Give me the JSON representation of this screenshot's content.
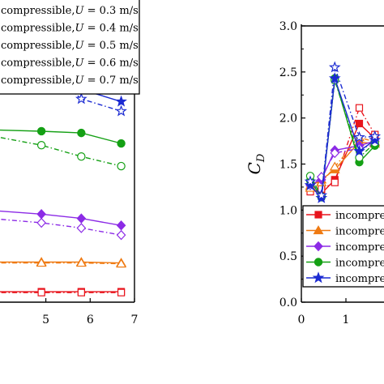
{
  "legend_entries": [
    {
      "prefix": "compressible,",
      "var": "U",
      "suffix": " = 0.3 m/s"
    },
    {
      "prefix": "compressible,",
      "var": "U",
      "suffix": " = 0.4 m/s"
    },
    {
      "prefix": "compressible,",
      "var": "U",
      "suffix": " = 0.5 m/s"
    },
    {
      "prefix": "compressible,",
      "var": "U",
      "suffix": " = 0.6 m/s"
    },
    {
      "prefix": "compressible,",
      "var": "U",
      "suffix": " = 0.7 m/s"
    }
  ],
  "chart_data": [
    {
      "type": "line",
      "title": "",
      "xlabel": "",
      "ylabel": "",
      "xlim": [
        3.6,
        7
      ],
      "x_ticks": [
        5,
        6,
        7
      ],
      "grid": false,
      "legend_position": "top-left",
      "series": [
        {
          "color": "#e8141c",
          "marker": "square",
          "x": [
            4.9,
            5.8,
            6.7
          ],
          "y": [
            0.12,
            0.12,
            0.12
          ]
        },
        {
          "color": "#e8141c",
          "marker": "square-open",
          "dashed": true,
          "x": [
            4.9,
            5.8,
            6.7
          ],
          "y": [
            0.11,
            0.11,
            0.11
          ]
        },
        {
          "color": "#ef7a12",
          "marker": "triangle",
          "x": [
            4.9,
            5.8,
            6.7
          ],
          "y": [
            0.46,
            0.46,
            0.45
          ]
        },
        {
          "color": "#ef7a12",
          "marker": "triangle-open",
          "dashed": true,
          "x": [
            4.9,
            5.8,
            6.7
          ],
          "y": [
            0.45,
            0.45,
            0.44
          ]
        },
        {
          "color": "#8c2be6",
          "marker": "diamond",
          "x": [
            4.9,
            5.8,
            6.7
          ],
          "y": [
            1.01,
            0.96,
            0.88
          ]
        },
        {
          "color": "#8c2be6",
          "marker": "diamond-open",
          "dashed": true,
          "x": [
            4.9,
            5.8,
            6.7
          ],
          "y": [
            0.91,
            0.85,
            0.77
          ]
        },
        {
          "color": "#14a014",
          "marker": "circle",
          "x": [
            4.9,
            5.8,
            6.7
          ],
          "y": [
            1.96,
            1.94,
            1.82
          ]
        },
        {
          "color": "#14a014",
          "marker": "circle-open",
          "dashed": true,
          "x": [
            4.9,
            5.8,
            6.7
          ],
          "y": [
            1.8,
            1.67,
            1.56
          ]
        },
        {
          "color": "#1c2bd2",
          "marker": "star",
          "x": [
            4.9,
            5.8,
            6.7
          ],
          "y": [
            2.5,
            2.44,
            2.3
          ]
        },
        {
          "color": "#1c2bd2",
          "marker": "star-open",
          "dashed": true,
          "x": [
            4.9,
            5.8,
            6.7
          ],
          "y": [
            2.72,
            2.33,
            2.19
          ]
        }
      ]
    },
    {
      "type": "line",
      "title": "",
      "xlabel": "",
      "ylabel": "C",
      "ylabel_sub": "D",
      "ylim": [
        0,
        3
      ],
      "y_ticks": [
        "0.0",
        "0.5",
        "1.0",
        "1.5",
        "2.0",
        "2.5",
        "3.0"
      ],
      "xlim": [
        0,
        1.75
      ],
      "x_ticks": [
        0,
        1
      ],
      "grid": false,
      "legend_position": "bottom-right",
      "legend": [
        "incompressible",
        "incompressible",
        "incompressible",
        "incompressible",
        "incompressible"
      ],
      "series": [
        {
          "color": "#e8141c",
          "marker": "square",
          "x": [
            0.2,
            0.45,
            0.75,
            1.3,
            1.65
          ],
          "y": [
            1.24,
            1.18,
            1.33,
            1.94,
            1.78
          ]
        },
        {
          "color": "#e8141c",
          "marker": "square-open",
          "dashed": true,
          "x": [
            0.2,
            0.45,
            0.75,
            1.3,
            1.65
          ],
          "y": [
            1.2,
            1.23,
            1.3,
            2.11,
            1.82
          ]
        },
        {
          "color": "#ef7a12",
          "marker": "triangle",
          "x": [
            0.2,
            0.45,
            0.75,
            1.3,
            1.65
          ],
          "y": [
            1.26,
            1.33,
            1.44,
            1.74,
            1.72
          ]
        },
        {
          "color": "#ef7a12",
          "marker": "triangle-open",
          "dashed": true,
          "x": [
            0.2,
            0.45,
            0.75,
            1.3,
            1.65
          ],
          "y": [
            1.24,
            1.3,
            1.47,
            1.79,
            1.74
          ]
        },
        {
          "color": "#8c2be6",
          "marker": "diamond",
          "x": [
            0.2,
            0.45,
            0.75,
            1.3,
            1.65
          ],
          "y": [
            1.28,
            1.33,
            1.65,
            1.7,
            1.75
          ]
        },
        {
          "color": "#8c2be6",
          "marker": "diamond-open",
          "dashed": true,
          "x": [
            0.2,
            0.45,
            0.75,
            1.3,
            1.65
          ],
          "y": [
            1.27,
            1.36,
            1.62,
            1.67,
            1.71
          ]
        },
        {
          "color": "#14a014",
          "marker": "circle",
          "x": [
            0.2,
            0.45,
            0.75,
            1.3,
            1.65
          ],
          "y": [
            1.32,
            1.14,
            2.43,
            1.52,
            1.7
          ]
        },
        {
          "color": "#14a014",
          "marker": "circle-open",
          "dashed": true,
          "x": [
            0.2,
            0.45,
            0.75,
            1.3,
            1.65
          ],
          "y": [
            1.37,
            1.15,
            2.41,
            1.57,
            1.73
          ]
        },
        {
          "color": "#1c2bd2",
          "marker": "star",
          "x": [
            0.2,
            0.45,
            0.75,
            1.3,
            1.65
          ],
          "y": [
            1.27,
            1.13,
            2.43,
            1.64,
            1.76
          ]
        },
        {
          "color": "#1c2bd2",
          "marker": "star-open",
          "dashed": true,
          "x": [
            0.2,
            0.45,
            0.75,
            1.3,
            1.65
          ],
          "y": [
            1.31,
            1.16,
            2.55,
            1.79,
            1.8
          ]
        }
      ]
    }
  ]
}
